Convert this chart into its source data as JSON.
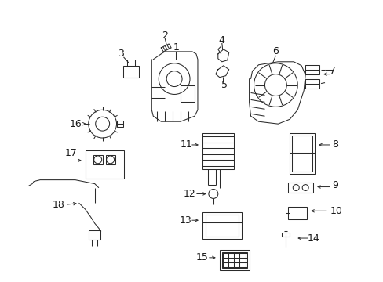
{
  "background_color": "#ffffff",
  "line_color": "#2a2a2a",
  "text_color": "#1a1a1a",
  "fig_width": 4.89,
  "fig_height": 3.6,
  "dpi": 100,
  "lw": 0.75
}
